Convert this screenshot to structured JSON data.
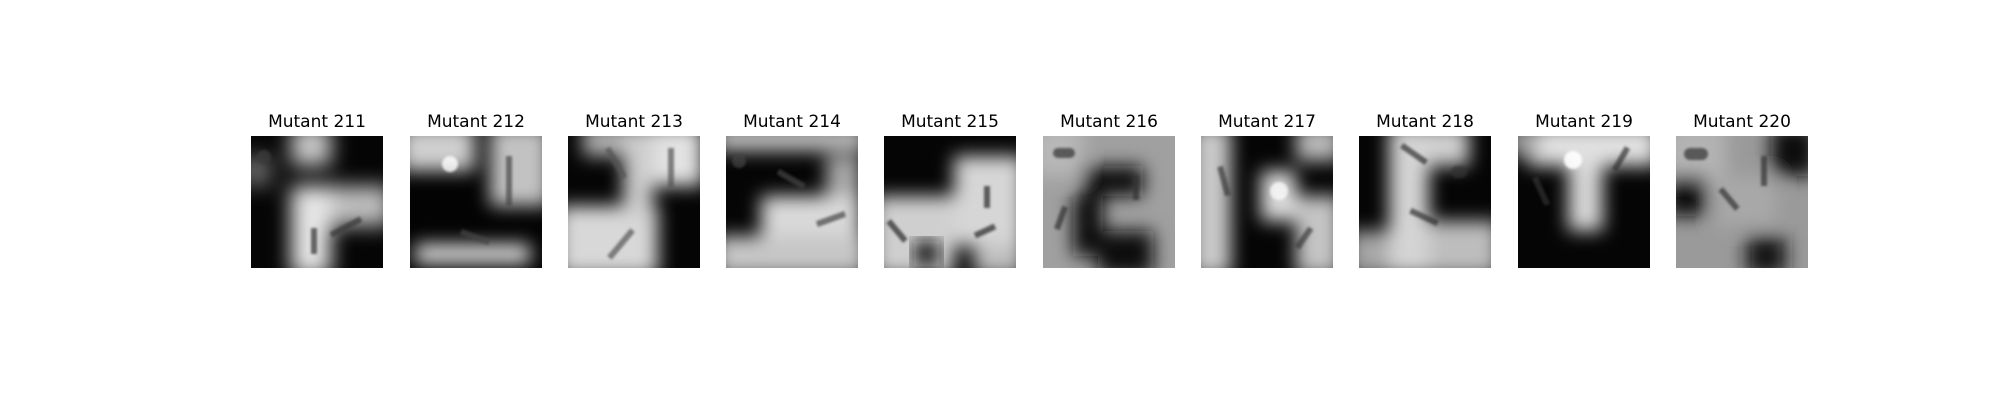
{
  "panels": [
    {
      "title": "Mutant 211",
      "image": "grayscale-masked-microscopy-thumbnail"
    },
    {
      "title": "Mutant 212",
      "image": "grayscale-masked-microscopy-thumbnail"
    },
    {
      "title": "Mutant 213",
      "image": "grayscale-masked-microscopy-thumbnail"
    },
    {
      "title": "Mutant 214",
      "image": "grayscale-masked-microscopy-thumbnail"
    },
    {
      "title": "Mutant 215",
      "image": "grayscale-masked-microscopy-thumbnail"
    },
    {
      "title": "Mutant 216",
      "image": "grayscale-masked-microscopy-thumbnail"
    },
    {
      "title": "Mutant 217",
      "image": "grayscale-masked-microscopy-thumbnail"
    },
    {
      "title": "Mutant 218",
      "image": "grayscale-masked-microscopy-thumbnail"
    },
    {
      "title": "Mutant 219",
      "image": "grayscale-masked-microscopy-thumbnail"
    },
    {
      "title": "Mutant 220",
      "image": "grayscale-masked-microscopy-thumbnail"
    }
  ]
}
